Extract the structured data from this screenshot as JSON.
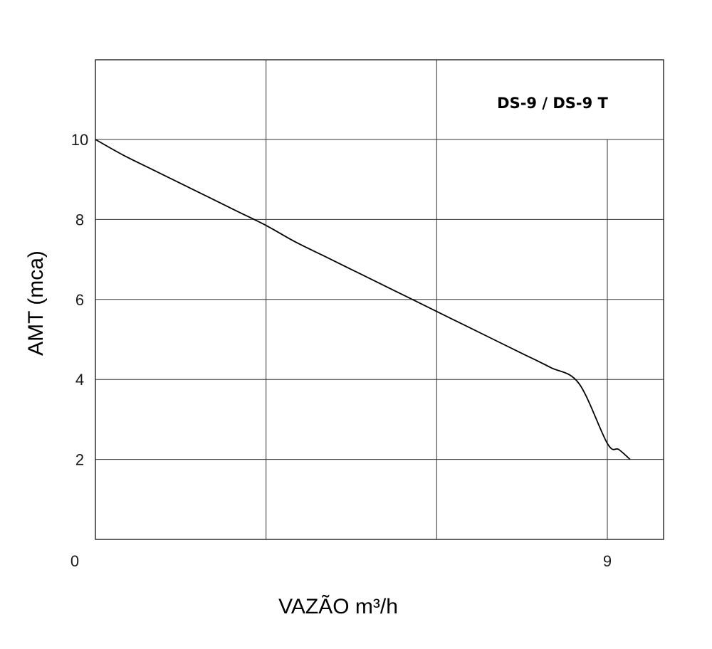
{
  "chart_data": {
    "type": "line",
    "title": "",
    "xlabel": "VAZÃO m³/h",
    "ylabel": "AMT (mca)",
    "xlim": [
      0,
      10
    ],
    "ylim": [
      0,
      12
    ],
    "x_ticks": [
      "0",
      "9"
    ],
    "y_ticks": [
      "2",
      "4",
      "6",
      "8",
      "10"
    ],
    "annotation": "DS-9 / DS-9 T",
    "grid": true,
    "series": [
      {
        "x": [
          0,
          0.5,
          1,
          1.5,
          2,
          2.5,
          3,
          3.5,
          4,
          4.5,
          5,
          5.5,
          6,
          6.5,
          7,
          7.5,
          8,
          8.5,
          9,
          9.2,
          9.4
        ],
        "y": [
          10.0,
          9.6,
          9.25,
          8.9,
          8.55,
          8.2,
          7.85,
          7.45,
          7.1,
          6.75,
          6.4,
          6.05,
          5.7,
          5.35,
          5.0,
          4.65,
          4.3,
          3.9,
          2.4,
          2.25,
          2.0
        ]
      }
    ]
  }
}
